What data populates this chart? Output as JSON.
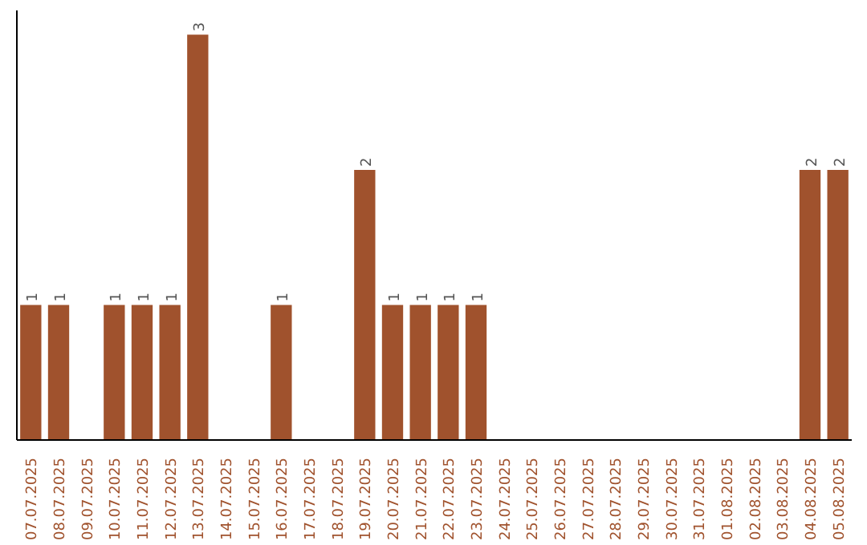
{
  "chart_data": {
    "type": "bar",
    "categories": [
      "07.07.2025",
      "08.07.2025",
      "09.07.2025",
      "10.07.2025",
      "11.07.2025",
      "12.07.2025",
      "13.07.2025",
      "14.07.2025",
      "15.07.2025",
      "16.07.2025",
      "17.07.2025",
      "18.07.2025",
      "19.07.2025",
      "20.07.2025",
      "21.07.2025",
      "22.07.2025",
      "23.07.2025",
      "24.07.2025",
      "25.07.2025",
      "26.07.2025",
      "27.07.2025",
      "28.07.2025",
      "29.07.2025",
      "30.07.2025",
      "31.07.2025",
      "01.08.2025",
      "02.08.2025",
      "03.08.2025",
      "04.08.2025",
      "05.08.2025"
    ],
    "values": [
      1,
      1,
      0,
      1,
      1,
      1,
      3,
      0,
      0,
      1,
      0,
      0,
      2,
      1,
      1,
      1,
      1,
      0,
      0,
      0,
      0,
      0,
      0,
      0,
      0,
      0,
      0,
      0,
      2,
      2
    ],
    "value_labels": [
      "1",
      "1",
      null,
      "1",
      "1",
      "1",
      "3",
      null,
      null,
      "1",
      null,
      null,
      "2",
      "1",
      "1",
      "1",
      "1",
      null,
      null,
      null,
      null,
      null,
      null,
      null,
      null,
      null,
      null,
      null,
      "2",
      "2"
    ],
    "color": "#a0522d",
    "grid": false
  }
}
